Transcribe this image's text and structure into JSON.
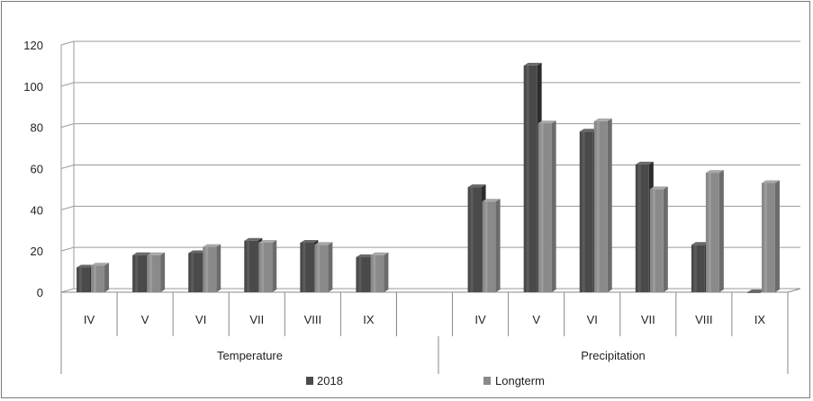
{
  "chart_data": {
    "type": "bar",
    "groups": [
      {
        "label": "Temperature",
        "categories": [
          "IV",
          "V",
          "VI",
          "VII",
          "VIII",
          "IX"
        ]
      },
      {
        "label": "Precipitation",
        "categories": [
          "IV",
          "V",
          "VI",
          "VII",
          "VIII",
          "IX"
        ]
      }
    ],
    "series": [
      {
        "name": "2018",
        "color": "#4a4a4a",
        "values": [
          12,
          18,
          19,
          25,
          24,
          17,
          51,
          110,
          78,
          62,
          23,
          0
        ]
      },
      {
        "name": "Longterm",
        "color": "#8a8a8a",
        "values": [
          13,
          18,
          22,
          24,
          23,
          18,
          44,
          82,
          83,
          50,
          58,
          53
        ]
      }
    ],
    "ylim": [
      0,
      120
    ],
    "yticks": [
      "0",
      "20",
      "40",
      "60",
      "80",
      "100",
      "120"
    ],
    "grid": true,
    "legend_position": "bottom"
  }
}
